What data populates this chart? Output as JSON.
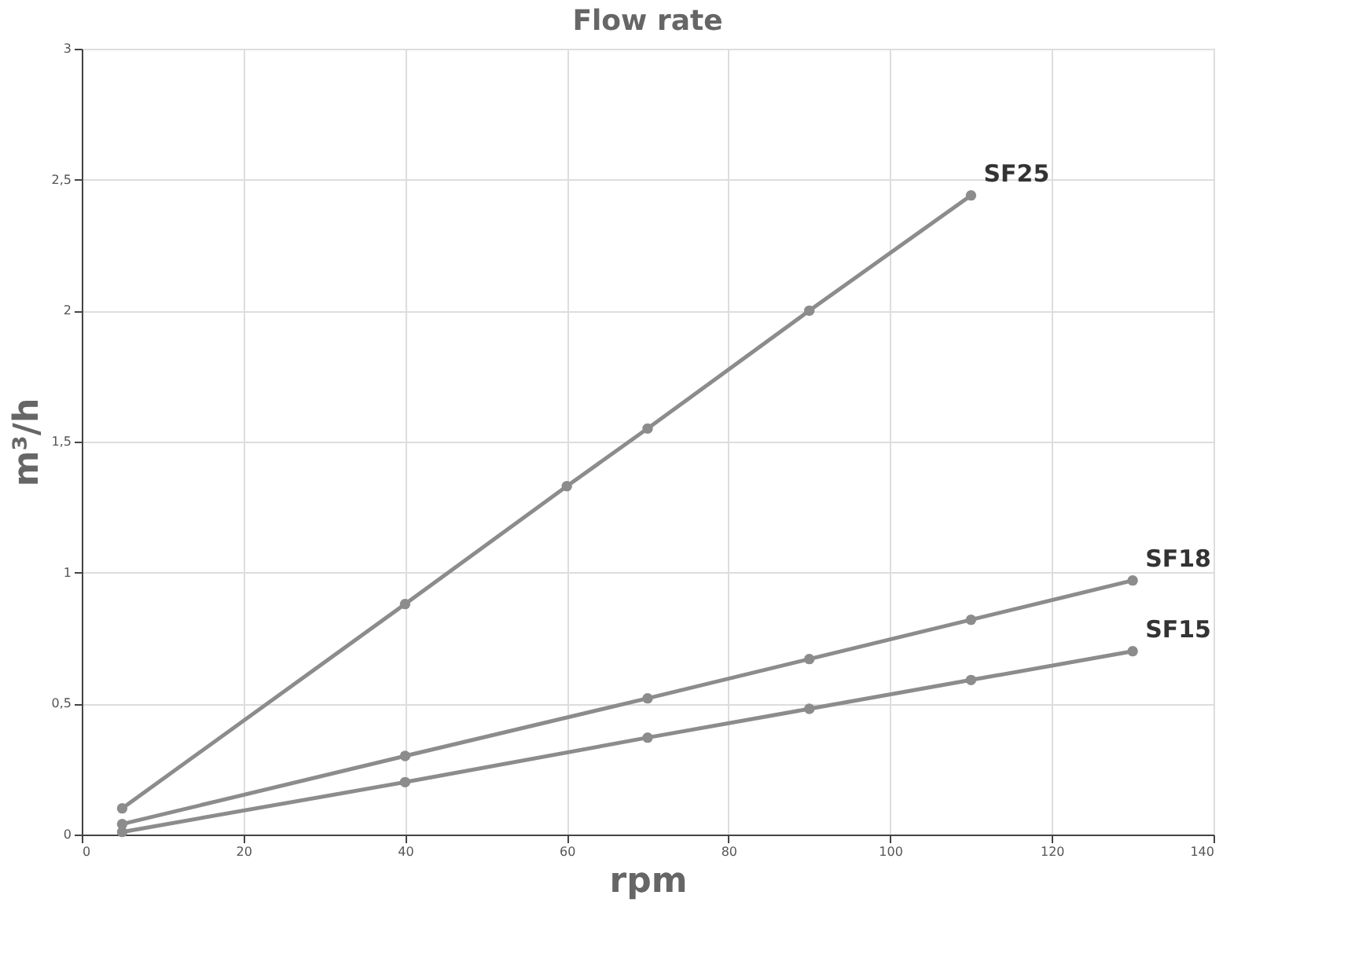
{
  "chart_data": {
    "type": "line",
    "title": "Flow rate",
    "xlabel": "rpm",
    "ylabel": "m³/h",
    "xlim": [
      0,
      140
    ],
    "xticks": [
      0,
      20,
      40,
      60,
      80,
      100,
      120,
      140
    ],
    "ylim": [
      0,
      3
    ],
    "yticks": [
      0,
      {
        "value": 0.5,
        "label": "0,5"
      },
      1,
      {
        "value": 1.5,
        "label": "1,5"
      },
      2,
      {
        "value": 2.5,
        "label": "2,5"
      },
      3
    ],
    "grid": true,
    "legend": false,
    "marker": "circle",
    "line_style": "solid",
    "series": [
      {
        "name": "SF25",
        "color": "#8c8c8c",
        "x": [
          5,
          40,
          60,
          70,
          90,
          110
        ],
        "values": [
          0.1,
          0.88,
          1.33,
          1.55,
          2.0,
          2.44
        ]
      },
      {
        "name": "SF18",
        "color": "#8c8c8c",
        "x": [
          5,
          40,
          70,
          90,
          110,
          130
        ],
        "values": [
          0.04,
          0.3,
          0.52,
          0.67,
          0.82,
          0.97
        ]
      },
      {
        "name": "SF15",
        "color": "#8c8c8c",
        "x": [
          5,
          40,
          70,
          90,
          110,
          130
        ],
        "values": [
          0.01,
          0.2,
          0.37,
          0.48,
          0.59,
          0.7
        ]
      }
    ]
  }
}
